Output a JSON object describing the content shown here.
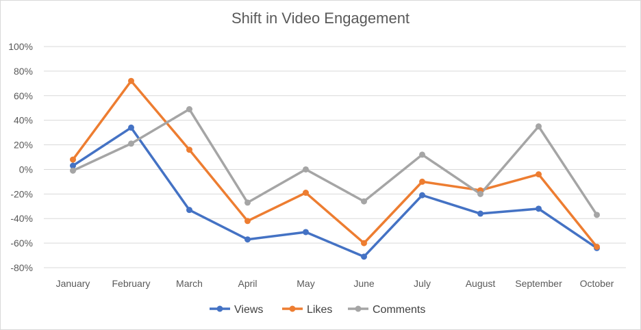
{
  "chart_data": {
    "type": "line",
    "title": "Shift in Video Engagement",
    "xlabel": "",
    "ylabel": "",
    "categories": [
      "January",
      "February",
      "March",
      "April",
      "May",
      "June",
      "July",
      "August",
      "September",
      "October"
    ],
    "y_ticks": [
      "100%",
      "80%",
      "60%",
      "40%",
      "20%",
      "0%",
      "-20%",
      "-40%",
      "-60%",
      "-80%"
    ],
    "ylim": [
      -80,
      100
    ],
    "grid": true,
    "legend_position": "bottom",
    "series": [
      {
        "name": "Views",
        "color": "#4472c4",
        "values": [
          3,
          34,
          -33,
          -57,
          -51,
          -71,
          -21,
          -36,
          -32,
          -64
        ]
      },
      {
        "name": "Likes",
        "color": "#ed7d31",
        "values": [
          8,
          72,
          16,
          -42,
          -19,
          -60,
          -10,
          -17,
          -4,
          -63
        ]
      },
      {
        "name": "Comments",
        "color": "#a5a5a5",
        "values": [
          -1,
          21,
          49,
          -27,
          0,
          -26,
          12,
          -20,
          35,
          -37
        ]
      }
    ]
  }
}
